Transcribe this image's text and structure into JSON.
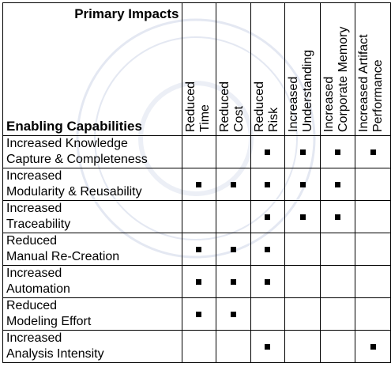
{
  "header": {
    "primary_impacts": "Primary Impacts",
    "enabling_capabilities": "Enabling Capabilities"
  },
  "columns": [
    {
      "line1": "Reduced",
      "line2": "Time"
    },
    {
      "line1": "Reduced",
      "line2": "Cost"
    },
    {
      "line1": "Reduced",
      "line2": "Risk"
    },
    {
      "line1": "Increased",
      "line2": "Understanding"
    },
    {
      "line1": "Increased",
      "line2": "Corporate Memory"
    },
    {
      "line1": "Increased Artifact",
      "line2": "Performance"
    }
  ],
  "rows": [
    {
      "line1": "Increased Knowledge",
      "line2": "Capture & Completeness",
      "marks": [
        false,
        false,
        true,
        true,
        true,
        true
      ]
    },
    {
      "line1": "Increased",
      "line2": "Modularity & Reusability",
      "marks": [
        true,
        true,
        true,
        true,
        true,
        false
      ]
    },
    {
      "line1": "Increased",
      "line2": "Traceability",
      "marks": [
        false,
        false,
        true,
        true,
        true,
        false
      ]
    },
    {
      "line1": "Reduced",
      "line2": "Manual Re-Creation",
      "marks": [
        true,
        true,
        true,
        false,
        false,
        false
      ]
    },
    {
      "line1": "Increased",
      "line2": "Automation",
      "marks": [
        true,
        true,
        true,
        false,
        false,
        false
      ]
    },
    {
      "line1": "Reduced",
      "line2": "Modeling Effort",
      "marks": [
        true,
        true,
        false,
        false,
        false,
        false
      ]
    },
    {
      "line1": "Increased",
      "line2": "Analysis Intensity",
      "marks": [
        false,
        false,
        true,
        false,
        false,
        true
      ]
    }
  ],
  "colors": {
    "mark": "#000000",
    "border": "#000000",
    "watermark": "#e4e8f2"
  }
}
